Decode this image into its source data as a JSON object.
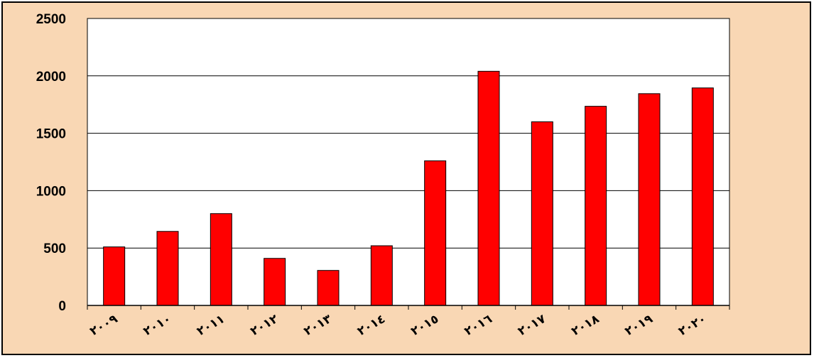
{
  "chart_data": {
    "type": "bar",
    "categories": [
      "٢٠٠٩",
      "٢٠١٠",
      "٢٠١١",
      "٢٠١٢",
      "٢٠١٣",
      "٢٠١٤",
      "٢٠١٥",
      "٢٠١٦",
      "٢٠١٧",
      "٢٠١٨",
      "٢٠١٩",
      "٢٠٢٠"
    ],
    "values": [
      510,
      645,
      800,
      410,
      305,
      520,
      1260,
      2040,
      1600,
      1735,
      1845,
      1895
    ],
    "title": "",
    "xlabel": "",
    "ylabel": "",
    "ylim": [
      0,
      2500
    ],
    "yticks": [
      "0",
      "500",
      "1000",
      "1500",
      "2000",
      "2500"
    ],
    "grid": true,
    "legend": "none",
    "colors": {
      "bar": "#ff0000",
      "bar_edge": "#000000",
      "plot_bg": "#ffffff",
      "frame_bg": "#f9d7b4",
      "grid": "#000000"
    }
  }
}
